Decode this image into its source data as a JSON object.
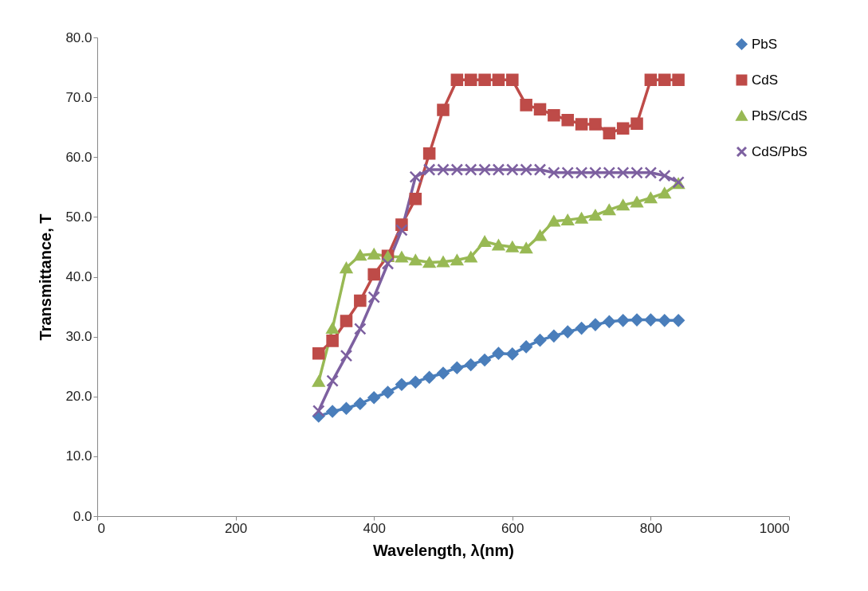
{
  "chart_data": {
    "type": "line",
    "xlabel": "Wavelength, λ(nm)",
    "ylabel": "Transmittance, T",
    "x": [
      320,
      340,
      360,
      380,
      400,
      420,
      440,
      460,
      480,
      500,
      520,
      540,
      560,
      580,
      600,
      620,
      640,
      660,
      680,
      700,
      720,
      740,
      760,
      780,
      800,
      820,
      840
    ],
    "series": [
      {
        "name": "PbS",
        "color": "#4a7ebb",
        "marker": "diamond",
        "values": [
          16.7,
          17.5,
          18.0,
          18.8,
          19.8,
          20.7,
          22.0,
          22.4,
          23.2,
          23.9,
          24.8,
          25.3,
          26.1,
          27.2,
          27.1,
          28.3,
          29.4,
          30.1,
          30.8,
          31.4,
          32.0,
          32.5,
          32.7,
          32.8,
          32.8,
          32.7,
          32.7
        ]
      },
      {
        "name": "CdS",
        "color": "#be4b48",
        "marker": "square",
        "values": [
          27.2,
          29.3,
          32.6,
          36.0,
          40.4,
          43.5,
          48.7,
          53.0,
          60.6,
          67.9,
          72.9,
          72.9,
          72.9,
          72.9,
          72.9,
          68.7,
          68.0,
          67.0,
          66.2,
          65.5,
          65.5,
          64.0,
          64.8,
          65.6,
          72.9,
          72.9,
          72.9
        ]
      },
      {
        "name": "PbS/CdS",
        "color": "#98b954",
        "marker": "triangle",
        "values": [
          22.5,
          31.4,
          41.5,
          43.6,
          43.8,
          43.4,
          43.3,
          42.8,
          42.4,
          42.5,
          42.8,
          43.3,
          45.9,
          45.3,
          45.0,
          44.8,
          46.9,
          49.3,
          49.5,
          49.8,
          50.3,
          51.2,
          52.0,
          52.5,
          53.2,
          54.0,
          55.6
        ]
      },
      {
        "name": "CdS/PbS",
        "color": "#7d60a0",
        "marker": "cross",
        "values": [
          17.6,
          22.6,
          26.8,
          31.3,
          36.6,
          42.2,
          47.8,
          56.7,
          57.9,
          57.9,
          57.9,
          57.9,
          57.9,
          57.9,
          57.9,
          57.9,
          57.9,
          57.4,
          57.4,
          57.4,
          57.4,
          57.4,
          57.4,
          57.4,
          57.4,
          56.9,
          55.8
        ]
      }
    ],
    "xlim": [
      0,
      1000
    ],
    "xticks": [
      0,
      200,
      400,
      600,
      800,
      1000
    ],
    "ylim": [
      0,
      80
    ],
    "yticks": [
      {
        "value": 0,
        "label": "0.0"
      },
      {
        "value": 10,
        "label": "10.0"
      },
      {
        "value": 20,
        "label": "20.0"
      },
      {
        "value": 30,
        "label": "30.0"
      },
      {
        "value": 40,
        "label": "40.0"
      },
      {
        "value": 50,
        "label": "50.0"
      },
      {
        "value": 60,
        "label": "60.0"
      },
      {
        "value": 70,
        "label": "70.0"
      },
      {
        "value": 80,
        "label": "80.0"
      }
    ],
    "legend": "top right"
  }
}
